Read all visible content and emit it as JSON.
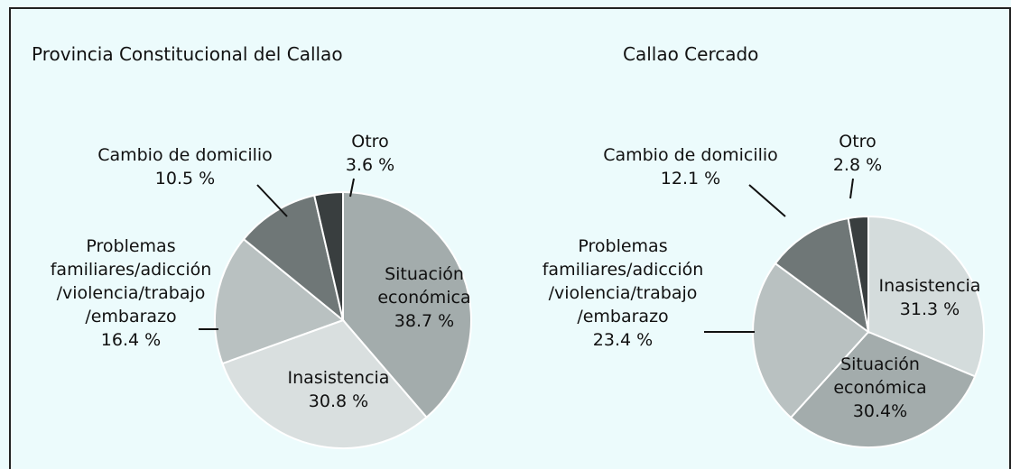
{
  "chart_data": [
    {
      "type": "pie",
      "title": "Provincia Constitucional del Callao",
      "categories": [
        "Situación\neconómica",
        "Inasistencia",
        "Problemas\nfamiliares/adicción\n/violencia/trabajo\n/embarazo",
        "Cambio de domicilio",
        "Otro"
      ],
      "values": [
        38.7,
        30.8,
        16.4,
        10.5,
        3.6
      ],
      "value_labels": [
        "38.7 %",
        "30.8 %",
        "16.4 %",
        "10.5 %",
        "3.6 %"
      ],
      "colors": [
        "#a3acac",
        "#d9dfdf",
        "#b9c1c1",
        "#6f7777",
        "#393e3f"
      ]
    },
    {
      "type": "pie",
      "title": "Callao Cercado",
      "categories": [
        "Inasistencia",
        "Situación\neconómica",
        "Problemas\nfamiliares/adicción\n/violencia/trabajo\n/embarazo",
        "Cambio de domicilio",
        "Otro"
      ],
      "values": [
        31.3,
        30.4,
        23.4,
        12.1,
        2.8
      ],
      "value_labels": [
        "31.3 %",
        "30.4%",
        "23.4 %",
        "12.1 %",
        "2.8 %"
      ],
      "colors": [
        "#d4dcdc",
        "#a3acac",
        "#b9c1c1",
        "#6f7777",
        "#393e3f"
      ]
    }
  ]
}
